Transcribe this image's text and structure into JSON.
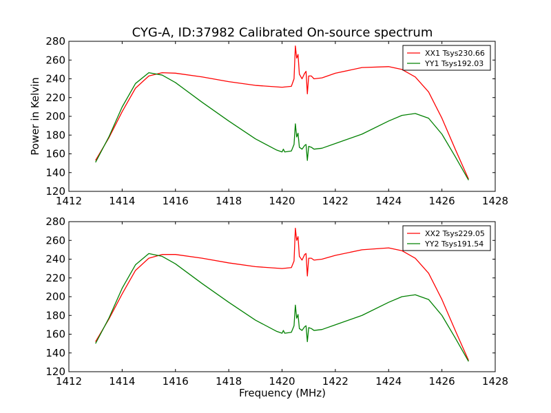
{
  "chart_data": {
    "title": "CYG-A, ID:37982 Calibrated On-source spectrum",
    "ylabel": "Power in Kelvin",
    "xlabel": "Frequency (MHz)",
    "colors": {
      "xx": "#ff0000",
      "yy": "#008000"
    },
    "panels": [
      {
        "type": "line",
        "xlim": [
          1412,
          1428
        ],
        "ylim": [
          120,
          280
        ],
        "xticks": [
          "1412",
          "1414",
          "1416",
          "1418",
          "1420",
          "1422",
          "1424",
          "1426",
          "1428"
        ],
        "yticks": [
          "120",
          "140",
          "160",
          "180",
          "200",
          "220",
          "240",
          "260",
          "280"
        ],
        "legend_position": "top-right",
        "series": [
          {
            "name": "XX1 Tsys230.66",
            "color_key": "xx",
            "points": [
              [
                1413.0,
                153
              ],
              [
                1413.5,
                177
              ],
              [
                1414.0,
                205
              ],
              [
                1414.5,
                230
              ],
              [
                1415.0,
                243
              ],
              [
                1415.5,
                246.5
              ],
              [
                1416.0,
                246
              ],
              [
                1417.0,
                242
              ],
              [
                1418.0,
                237
              ],
              [
                1419.0,
                233
              ],
              [
                1420.0,
                231
              ],
              [
                1420.35,
                232
              ],
              [
                1420.45,
                240
              ],
              [
                1420.5,
                275
              ],
              [
                1420.55,
                262
              ],
              [
                1420.6,
                266
              ],
              [
                1420.65,
                245
              ],
              [
                1420.75,
                240
              ],
              [
                1420.85,
                246
              ],
              [
                1420.9,
                248
              ],
              [
                1420.95,
                224
              ],
              [
                1421.0,
                243
              ],
              [
                1421.1,
                243
              ],
              [
                1421.2,
                240
              ],
              [
                1421.5,
                241
              ],
              [
                1422.0,
                246
              ],
              [
                1423.0,
                252
              ],
              [
                1424.0,
                253
              ],
              [
                1424.5,
                250
              ],
              [
                1425.0,
                242
              ],
              [
                1425.5,
                226
              ],
              [
                1426.0,
                198
              ],
              [
                1426.5,
                165
              ],
              [
                1427.0,
                133
              ]
            ]
          },
          {
            "name": "YY1 Tsys192.03",
            "color_key": "yy",
            "points": [
              [
                1413.0,
                151
              ],
              [
                1413.5,
                178
              ],
              [
                1414.0,
                210
              ],
              [
                1414.5,
                235
              ],
              [
                1415.0,
                246.5
              ],
              [
                1415.5,
                244
              ],
              [
                1416.0,
                236
              ],
              [
                1417.0,
                215
              ],
              [
                1418.0,
                195
              ],
              [
                1419.0,
                176
              ],
              [
                1419.8,
                164
              ],
              [
                1420.0,
                162
              ],
              [
                1420.05,
                165
              ],
              [
                1420.1,
                162
              ],
              [
                1420.35,
                163
              ],
              [
                1420.45,
                170
              ],
              [
                1420.5,
                192
              ],
              [
                1420.55,
                178
              ],
              [
                1420.6,
                182
              ],
              [
                1420.65,
                167
              ],
              [
                1420.75,
                165
              ],
              [
                1420.85,
                169
              ],
              [
                1420.9,
                170
              ],
              [
                1420.95,
                153
              ],
              [
                1421.0,
                168
              ],
              [
                1421.1,
                167
              ],
              [
                1421.2,
                165
              ],
              [
                1421.5,
                166
              ],
              [
                1422.0,
                171
              ],
              [
                1423.0,
                181
              ],
              [
                1424.0,
                195
              ],
              [
                1424.5,
                201
              ],
              [
                1425.0,
                203
              ],
              [
                1425.5,
                198
              ],
              [
                1426.0,
                181
              ],
              [
                1426.5,
                157
              ],
              [
                1427.0,
                132
              ]
            ]
          }
        ]
      },
      {
        "type": "line",
        "xlim": [
          1412,
          1428
        ],
        "ylim": [
          120,
          280
        ],
        "xticks": [
          "1412",
          "1414",
          "1416",
          "1418",
          "1420",
          "1422",
          "1424",
          "1426",
          "1428"
        ],
        "yticks": [
          "120",
          "140",
          "160",
          "180",
          "200",
          "220",
          "240",
          "260",
          "280"
        ],
        "legend_position": "top-right",
        "series": [
          {
            "name": "XX2 Tsys229.05",
            "color_key": "xx",
            "points": [
              [
                1413.0,
                152
              ],
              [
                1413.5,
                176
              ],
              [
                1414.0,
                203
              ],
              [
                1414.5,
                228
              ],
              [
                1415.0,
                241
              ],
              [
                1415.5,
                245
              ],
              [
                1416.0,
                245
              ],
              [
                1417.0,
                241
              ],
              [
                1418.0,
                236
              ],
              [
                1419.0,
                232
              ],
              [
                1420.0,
                230
              ],
              [
                1420.35,
                231
              ],
              [
                1420.45,
                238
              ],
              [
                1420.5,
                273
              ],
              [
                1420.55,
                260
              ],
              [
                1420.6,
                264
              ],
              [
                1420.65,
                243
              ],
              [
                1420.75,
                239
              ],
              [
                1420.85,
                245
              ],
              [
                1420.9,
                246
              ],
              [
                1420.95,
                222
              ],
              [
                1421.0,
                241
              ],
              [
                1421.1,
                241
              ],
              [
                1421.2,
                239
              ],
              [
                1421.5,
                240
              ],
              [
                1422.0,
                244
              ],
              [
                1423.0,
                250
              ],
              [
                1424.0,
                252
              ],
              [
                1424.5,
                249
              ],
              [
                1425.0,
                241
              ],
              [
                1425.5,
                225
              ],
              [
                1426.0,
                197
              ],
              [
                1426.5,
                164
              ],
              [
                1427.0,
                132
              ]
            ]
          },
          {
            "name": "YY2 Tsys191.54",
            "color_key": "yy",
            "points": [
              [
                1413.0,
                150
              ],
              [
                1413.5,
                177
              ],
              [
                1414.0,
                209
              ],
              [
                1414.5,
                234
              ],
              [
                1415.0,
                246
              ],
              [
                1415.5,
                243
              ],
              [
                1416.0,
                235
              ],
              [
                1417.0,
                214
              ],
              [
                1418.0,
                194
              ],
              [
                1419.0,
                175
              ],
              [
                1419.8,
                163
              ],
              [
                1420.0,
                161
              ],
              [
                1420.05,
                164
              ],
              [
                1420.1,
                161
              ],
              [
                1420.35,
                162
              ],
              [
                1420.45,
                169
              ],
              [
                1420.5,
                191
              ],
              [
                1420.55,
                177
              ],
              [
                1420.6,
                181
              ],
              [
                1420.65,
                166
              ],
              [
                1420.75,
                164
              ],
              [
                1420.85,
                168
              ],
              [
                1420.9,
                169
              ],
              [
                1420.95,
                152
              ],
              [
                1421.0,
                167
              ],
              [
                1421.1,
                166
              ],
              [
                1421.2,
                164
              ],
              [
                1421.5,
                165
              ],
              [
                1422.0,
                170
              ],
              [
                1423.0,
                180
              ],
              [
                1424.0,
                194
              ],
              [
                1424.5,
                200
              ],
              [
                1425.0,
                202
              ],
              [
                1425.5,
                197
              ],
              [
                1426.0,
                180
              ],
              [
                1426.5,
                156
              ],
              [
                1427.0,
                131
              ]
            ]
          }
        ]
      }
    ]
  }
}
